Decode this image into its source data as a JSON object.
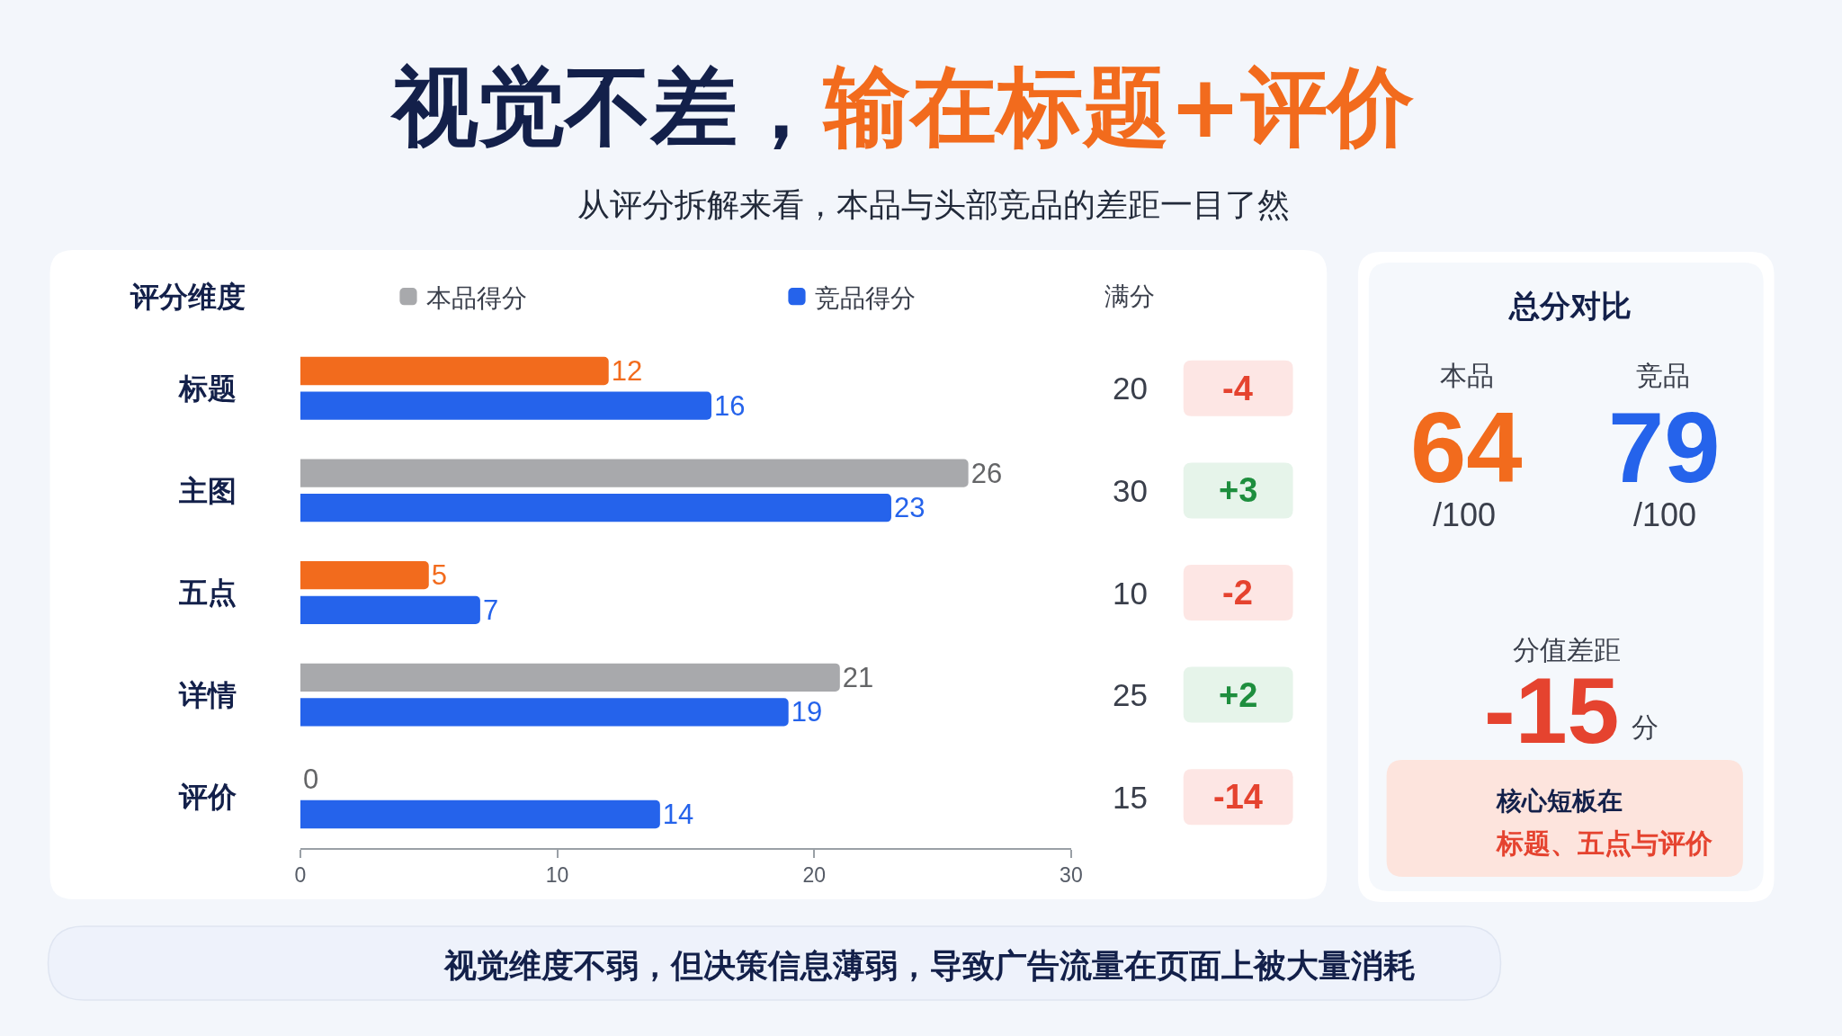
{
  "chart_data": [
    {
      "type": "bar",
      "orientation": "horizontal",
      "title": "视觉不差，输在标题+评价",
      "subtitle": "从评分拆解来看，本品与头部竞品的差距一目了然",
      "ylabel": "评分维度",
      "categories": [
        "标题",
        "主图",
        "五点",
        "详情",
        "评价"
      ],
      "series": [
        {
          "name": "本品得分",
          "color": "#a8a9ac",
          "colors": [
            "#f26b1d",
            "#a8a9ac",
            "#f26b1d",
            "#a8a9ac",
            "#a8a9ac"
          ],
          "values": [
            12,
            26,
            5,
            21,
            0
          ]
        },
        {
          "name": "竞品得分",
          "color": "#2563eb",
          "values": [
            16,
            23,
            7,
            19,
            14
          ]
        }
      ],
      "xlim": [
        0,
        30
      ],
      "xticks": [
        0,
        10,
        20,
        30
      ],
      "data_labels": true,
      "legend": "top",
      "grid": false,
      "annotations": [
        "满分",
        "20",
        "-4",
        "30",
        "+3",
        "10",
        "-2",
        "25",
        "+2",
        "15",
        "-14",
        "视觉维度不弱，但决策信息薄弱，导致广告流量在页面上被大量消耗"
      ]
    },
    {
      "type": "other",
      "title": "总分对比",
      "annotations": [
        "本品",
        "64",
        "/100",
        "竞品",
        "79",
        "/100",
        "分值差距",
        "-15",
        "分",
        "核心短板在",
        "标题、五点与评价"
      ]
    }
  ]
}
